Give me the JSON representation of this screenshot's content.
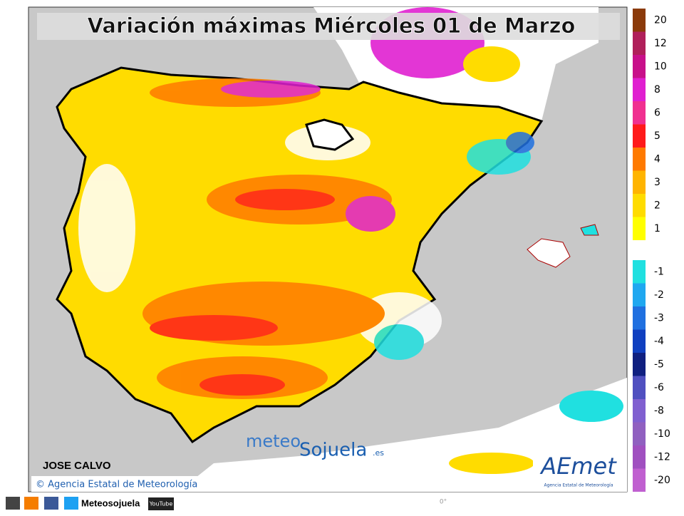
{
  "title": "Variación máximas Miércoles 01 de Marzo",
  "legend": {
    "warm": [
      {
        "label": "20",
        "color": "#8b3a0a"
      },
      {
        "label": "12",
        "color": "#b0205a"
      },
      {
        "label": "10",
        "color": "#c8108a"
      },
      {
        "label": "8",
        "color": "#e020d0"
      },
      {
        "label": "6",
        "color": "#f03090"
      },
      {
        "label": "5",
        "color": "#ff1a1a"
      },
      {
        "label": "4",
        "color": "#ff7a00"
      },
      {
        "label": "3",
        "color": "#ffb400"
      },
      {
        "label": "2",
        "color": "#ffdc00"
      },
      {
        "label": "1",
        "color": "#ffff00"
      }
    ],
    "cold": [
      {
        "label": "-1",
        "color": "#20e0e0"
      },
      {
        "label": "-2",
        "color": "#20a8f0"
      },
      {
        "label": "-3",
        "color": "#2070e0"
      },
      {
        "label": "-4",
        "color": "#1040c0"
      },
      {
        "label": "-5",
        "color": "#102080"
      },
      {
        "label": "-6",
        "color": "#5050c0"
      },
      {
        "label": "-8",
        "color": "#8060d0"
      },
      {
        "label": "-10",
        "color": "#9060c0"
      },
      {
        "label": "-12",
        "color": "#a050c0"
      },
      {
        "label": "-20",
        "color": "#c060d0"
      }
    ]
  },
  "author": "JOSE CALVO",
  "copyright": "© Agencia Estatal de Meteorología",
  "watermark": {
    "meteo": "meteo",
    "sojuela": "Sojuela",
    "domain": ".es"
  },
  "logo": {
    "name": "AEmet",
    "subtitle": "Agencia Estatal de Meteorología"
  },
  "footer": {
    "handle": "Meteosojuela",
    "youtube": "YouTube"
  },
  "longitude": "0°"
}
